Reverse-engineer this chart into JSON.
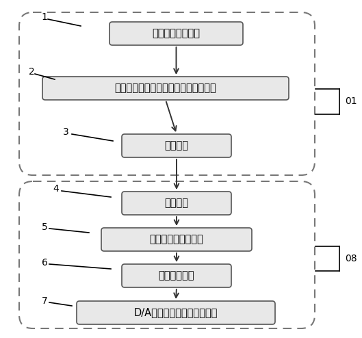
{
  "background_color": "#ffffff",
  "box1_text": "实时采集试纸信息",
  "box2_text": "转换成适合本血糖仪的试纸信息并存储",
  "box3_text": "数据传输",
  "box4_text": "数据接收",
  "box5_text": "存储试纸特征码数据",
  "box6_text": "数据调用模块",
  "box7_text": "D/A转换输出三电极参比电压",
  "label1": "1",
  "label2": "2",
  "label3": "3",
  "label4": "4",
  "label5": "5",
  "label6": "6",
  "label7": "7",
  "label_01": "01",
  "label_08": "08",
  "box_facecolor": "#e8e8e8",
  "box_edgecolor": "#555555",
  "arrow_color": "#333333",
  "dashed_rect_color": "#666666",
  "label_color": "#000000",
  "line_color": "#000000",
  "font_size_boxes": 10.5,
  "font_size_labels": 10,
  "font_size_side": 10
}
